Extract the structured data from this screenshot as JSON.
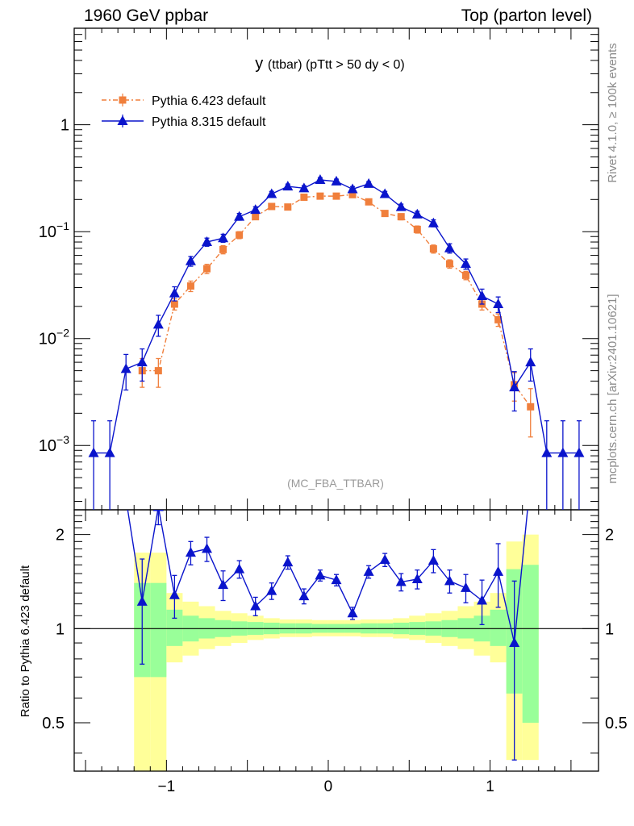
{
  "header": {
    "left": "1960 GeV ppbar",
    "right": "Top (parton level)"
  },
  "side": {
    "rivet": "Rivet 4.1.0, ≥ 100k events",
    "mcplots": "mcplots.cern.ch [arXiv:2401.10621]"
  },
  "chart_data": [
    {
      "type": "line",
      "panel": "main",
      "title": "y (ttbar) (pTtt > 50 dy < 0)",
      "title_main": "y",
      "title_sub": "(ttbar) (pTtt > 50 dy < 0)",
      "watermark": "(MC_FBA_TTBAR)",
      "xlim": [
        -1.57,
        1.67
      ],
      "ylim": [
        0.00025,
        8
      ],
      "yscale": "log",
      "yticks": [
        {
          "v": 0.001,
          "base": "10",
          "exp": "−3"
        },
        {
          "v": 0.01,
          "base": "10",
          "exp": "−2"
        },
        {
          "v": 0.1,
          "base": "10",
          "exp": "−1"
        },
        {
          "v": 1,
          "base": "1",
          "exp": ""
        }
      ],
      "legend_position": "top-left",
      "series": [
        {
          "name": "Pythia 6.423 default",
          "color": "#f07f3c",
          "marker": "square",
          "x": [
            -1.15,
            -1.05,
            -0.95,
            -0.85,
            -0.75,
            -0.65,
            -0.55,
            -0.45,
            -0.35,
            -0.25,
            -0.15,
            -0.05,
            0.05,
            0.15,
            0.25,
            0.35,
            0.45,
            0.55,
            0.65,
            0.75,
            0.85,
            0.95,
            1.05,
            1.15,
            1.25
          ],
          "y": [
            0.005,
            0.005,
            0.021,
            0.031,
            0.045,
            0.068,
            0.093,
            0.138,
            0.172,
            0.17,
            0.21,
            0.215,
            0.215,
            0.222,
            0.19,
            0.148,
            0.138,
            0.105,
            0.069,
            0.05,
            0.039,
            0.021,
            0.015,
            0.0037,
            0.0023
          ],
          "err": [
            0.0015,
            0.0015,
            0.0025,
            0.0035,
            0.0045,
            0.006,
            0.007,
            0.008,
            0.009,
            0.009,
            0.01,
            0.01,
            0.01,
            0.01,
            0.01,
            0.009,
            0.009,
            0.008,
            0.006,
            0.0045,
            0.0035,
            0.0025,
            0.002,
            0.0011,
            0.0011
          ]
        },
        {
          "name": "Pythia 8.315 default",
          "color": "#0a14cc",
          "marker": "triangle",
          "x": [
            -1.45,
            -1.35,
            -1.25,
            -1.15,
            -1.05,
            -0.95,
            -0.85,
            -0.75,
            -0.65,
            -0.55,
            -0.45,
            -0.35,
            -0.25,
            -0.15,
            -0.05,
            0.05,
            0.15,
            0.25,
            0.35,
            0.45,
            0.55,
            0.65,
            0.75,
            0.85,
            0.95,
            1.05,
            1.15,
            1.25,
            1.35,
            1.45,
            1.55
          ],
          "y": [
            0.00085,
            0.00085,
            0.0052,
            0.006,
            0.0135,
            0.0265,
            0.053,
            0.08,
            0.087,
            0.138,
            0.16,
            0.225,
            0.265,
            0.255,
            0.305,
            0.295,
            0.25,
            0.28,
            0.225,
            0.17,
            0.145,
            0.12,
            0.07,
            0.05,
            0.025,
            0.021,
            0.0035,
            0.006,
            0.00085,
            0.00085,
            0.00085
          ],
          "err": [
            0.00085,
            0.00085,
            0.0019,
            0.002,
            0.003,
            0.004,
            0.0055,
            0.007,
            0.0075,
            0.01,
            0.011,
            0.013,
            0.014,
            0.014,
            0.015,
            0.015,
            0.014,
            0.014,
            0.013,
            0.011,
            0.01,
            0.009,
            0.007,
            0.0055,
            0.004,
            0.0035,
            0.0014,
            0.002,
            0.00085,
            0.00085,
            0.00085
          ]
        }
      ]
    },
    {
      "type": "line",
      "panel": "ratio",
      "ylabel": "Ratio to Pythia 6.423 default",
      "xlim": [
        -1.57,
        1.67
      ],
      "ylim": [
        0.35,
        2.4
      ],
      "yscale": "log",
      "xticks": [
        {
          "v": -1,
          "label": "−1"
        },
        {
          "v": 0,
          "label": "0"
        },
        {
          "v": 1,
          "label": "1"
        }
      ],
      "yticks": [
        {
          "v": 0.5,
          "label": "0.5"
        },
        {
          "v": 1,
          "label": "1"
        },
        {
          "v": 2,
          "label": "2"
        }
      ],
      "bands": {
        "x_edges": [
          -1.2,
          -1.1,
          -1.0,
          -0.9,
          -0.8,
          -0.7,
          -0.6,
          -0.5,
          -0.4,
          -0.3,
          -0.2,
          -0.1,
          0.0,
          0.1,
          0.2,
          0.3,
          0.4,
          0.5,
          0.6,
          0.7,
          0.8,
          0.9,
          1.0,
          1.1,
          1.2,
          1.3
        ],
        "yellow_color": "#ffff99",
        "green_color": "#99ff99",
        "yellow_lo": [
          0.25,
          0.25,
          0.78,
          0.82,
          0.86,
          0.88,
          0.9,
          0.92,
          0.93,
          0.94,
          0.94,
          0.945,
          0.945,
          0.945,
          0.94,
          0.94,
          0.93,
          0.92,
          0.9,
          0.88,
          0.86,
          0.82,
          0.78,
          0.38,
          0.38
        ],
        "yellow_hi": [
          1.75,
          1.75,
          1.3,
          1.22,
          1.18,
          1.14,
          1.12,
          1.1,
          1.08,
          1.07,
          1.07,
          1.065,
          1.065,
          1.065,
          1.07,
          1.07,
          1.08,
          1.1,
          1.12,
          1.14,
          1.18,
          1.22,
          1.3,
          1.9,
          2.0
        ],
        "green_lo": [
          0.7,
          0.7,
          0.88,
          0.91,
          0.93,
          0.94,
          0.95,
          0.955,
          0.96,
          0.965,
          0.965,
          0.97,
          0.97,
          0.97,
          0.965,
          0.965,
          0.96,
          0.955,
          0.95,
          0.94,
          0.93,
          0.91,
          0.88,
          0.62,
          0.5
        ],
        "green_hi": [
          1.4,
          1.4,
          1.15,
          1.1,
          1.08,
          1.065,
          1.055,
          1.05,
          1.045,
          1.04,
          1.04,
          1.035,
          1.035,
          1.035,
          1.04,
          1.04,
          1.045,
          1.05,
          1.055,
          1.065,
          1.08,
          1.1,
          1.15,
          1.55,
          1.6
        ]
      },
      "series": [
        {
          "name": "Pythia 8.315 default / Pythia 6.423 default",
          "color": "#0a14cc",
          "marker": "triangle",
          "x_start": -1.25,
          "x": [
            -1.15,
            -1.05,
            -0.95,
            -0.85,
            -0.75,
            -0.65,
            -0.55,
            -0.45,
            -0.35,
            -0.25,
            -0.15,
            -0.05,
            0.05,
            0.15,
            0.25,
            0.35,
            0.45,
            0.55,
            0.65,
            0.75,
            0.85,
            0.95,
            1.05,
            1.15
          ],
          "y_start": 2.6,
          "x_end": 1.25,
          "y_end": 3.0,
          "y": [
            1.22,
            2.45,
            1.28,
            1.75,
            1.8,
            1.38,
            1.55,
            1.18,
            1.32,
            1.63,
            1.27,
            1.48,
            1.43,
            1.12,
            1.52,
            1.66,
            1.41,
            1.44,
            1.65,
            1.42,
            1.35,
            1.23,
            1.52,
            0.9
          ],
          "err": [
            0.45,
            0.3,
            0.2,
            0.15,
            0.16,
            0.15,
            0.1,
            0.08,
            0.08,
            0.08,
            0.07,
            0.06,
            0.06,
            0.05,
            0.07,
            0.08,
            0.09,
            0.1,
            0.14,
            0.12,
            0.14,
            0.2,
            0.35,
            0.52
          ]
        }
      ]
    }
  ]
}
